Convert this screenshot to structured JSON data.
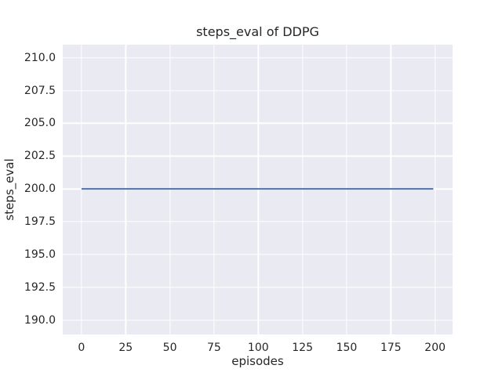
{
  "chart_data": {
    "type": "line",
    "title": "steps_eval of DDPG",
    "xlabel": "episodes",
    "ylabel": "steps_eval",
    "xlim": [
      -10.6,
      209.9
    ],
    "ylim": [
      188.9,
      211.0
    ],
    "xticks": [
      0,
      25,
      50,
      75,
      100,
      125,
      150,
      175,
      200
    ],
    "xtick_labels": [
      "0",
      "25",
      "50",
      "75",
      "100",
      "125",
      "150",
      "175",
      "200"
    ],
    "yticks": [
      190.0,
      192.5,
      195.0,
      197.5,
      200.0,
      202.5,
      205.0,
      207.5,
      210.0
    ],
    "ytick_labels": [
      "190.0",
      "192.5",
      "195.0",
      "197.5",
      "200.0",
      "202.5",
      "205.0",
      "207.5",
      "210.0"
    ],
    "grid": true,
    "legend": false,
    "style": "seaborn-darkgrid",
    "colors": {
      "figure_background": "#ffffff",
      "plot_background": "#eaeaf2",
      "gridline": "#ffffff",
      "text": "#262626",
      "line": "#4c72b0"
    },
    "series": [
      {
        "name": "DDPG steps_eval",
        "color": "#4c72b0",
        "x": [
          0,
          199
        ],
        "y": [
          200,
          200
        ]
      }
    ]
  }
}
